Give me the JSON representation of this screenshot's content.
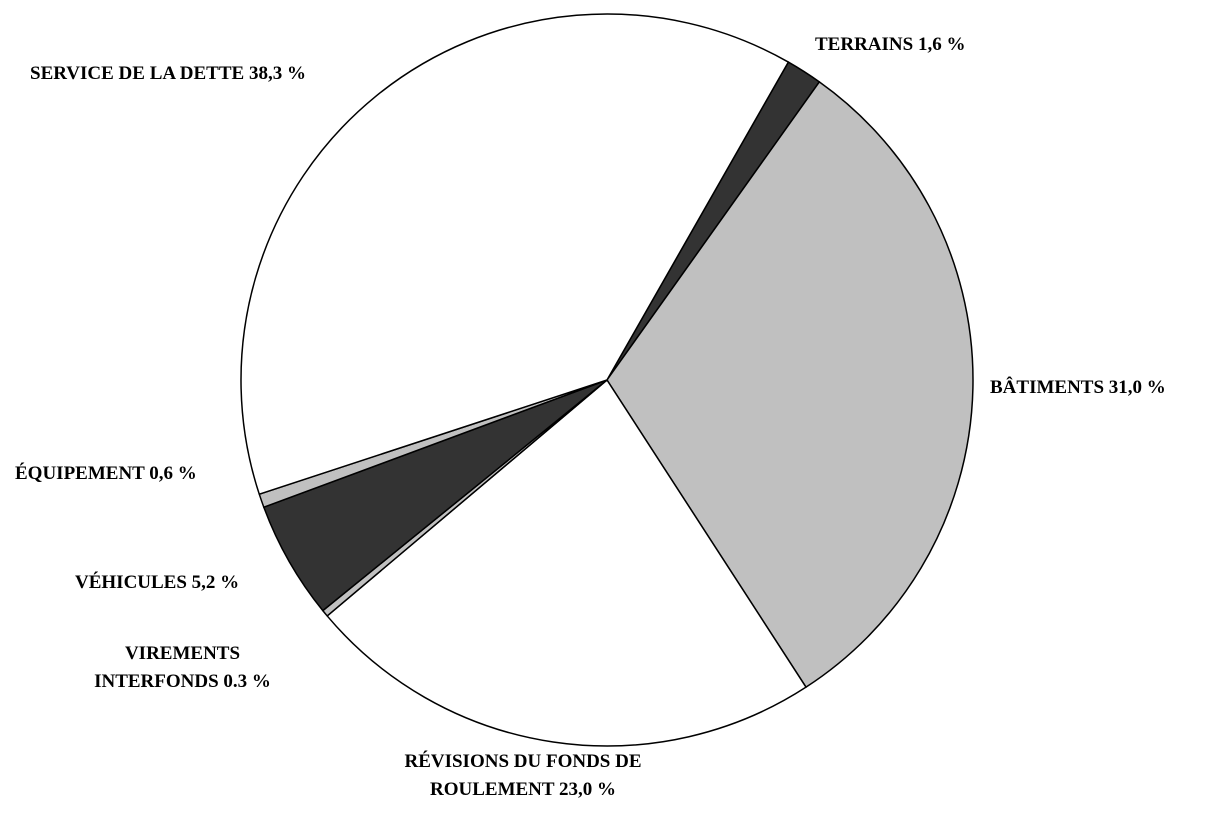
{
  "chart_data": {
    "type": "pie",
    "categories": [
      "TERRAINS",
      "BÂTIMENTS",
      "RÉVISIONS DU FONDS DE ROULEMENT",
      "VIREMENTS INTERFONDS",
      "VÉHICULES",
      "ÉQUIPEMENT",
      "SERVICE DE LA DETTE"
    ],
    "values": [
      1.6,
      31.0,
      23.0,
      0.3,
      5.2,
      0.6,
      38.3
    ],
    "value_labels": [
      "1,6 %",
      "31,0 %",
      "23,0 %",
      "0.3 %",
      "5,2 %",
      "0,6 %",
      "38,3 %"
    ],
    "colors": [
      "#333333",
      "#c0c0c0",
      "#ffffff",
      "#c0c0c0",
      "#333333",
      "#c0c0c0",
      "#ffffff"
    ]
  }
}
